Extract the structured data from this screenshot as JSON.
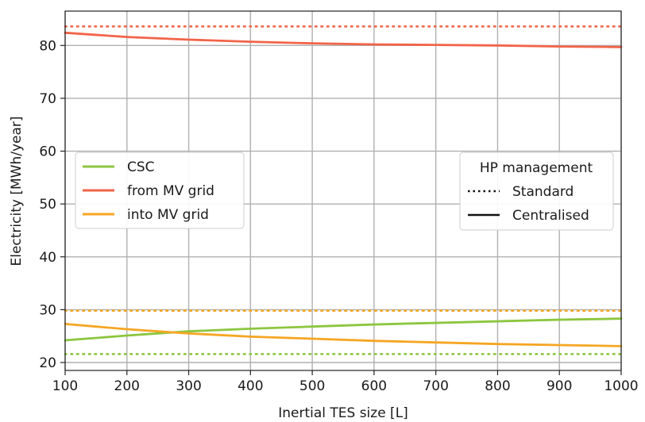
{
  "chart_data": {
    "type": "line",
    "xlabel": "Inertial TES size [L]",
    "ylabel": "Electricity [MWh/year]",
    "xlim": [
      100,
      1000
    ],
    "ylim": [
      18.5,
      86.5
    ],
    "xticks": [
      100,
      200,
      300,
      400,
      500,
      600,
      700,
      800,
      900,
      1000
    ],
    "yticks": [
      20,
      30,
      40,
      50,
      60,
      70,
      80
    ],
    "grid": true,
    "x": [
      100,
      200,
      300,
      400,
      500,
      600,
      700,
      800,
      900,
      1000
    ],
    "colors": {
      "csc": "#8cc63f",
      "from_mv_grid": "#f26449",
      "into_mv_grid": "#f5a623"
    },
    "series": [
      {
        "name": "CSC",
        "key": "csc",
        "style": "Centralised",
        "values": [
          24.2,
          25.1,
          25.9,
          26.4,
          26.8,
          27.2,
          27.5,
          27.8,
          28.1,
          28.3
        ]
      },
      {
        "name": "from MV grid",
        "key": "from_mv_grid",
        "style": "Centralised",
        "values": [
          82.4,
          81.6,
          81.1,
          80.7,
          80.4,
          80.2,
          80.1,
          80.0,
          79.8,
          79.7
        ]
      },
      {
        "name": "into MV grid",
        "key": "into_mv_grid",
        "style": "Centralised",
        "values": [
          27.3,
          26.3,
          25.5,
          24.9,
          24.5,
          24.1,
          23.8,
          23.5,
          23.3,
          23.1
        ]
      },
      {
        "name": "CSC",
        "key": "csc",
        "style": "Standard",
        "values": [
          21.6,
          21.6,
          21.6,
          21.6,
          21.6,
          21.6,
          21.6,
          21.6,
          21.6,
          21.6
        ]
      },
      {
        "name": "from MV grid",
        "key": "from_mv_grid",
        "style": "Standard",
        "values": [
          83.6,
          83.6,
          83.6,
          83.6,
          83.6,
          83.6,
          83.6,
          83.6,
          83.6,
          83.6
        ]
      },
      {
        "name": "into MV grid",
        "key": "into_mv_grid",
        "style": "Standard",
        "values": [
          29.8,
          29.8,
          29.8,
          29.8,
          29.8,
          29.8,
          29.8,
          29.8,
          29.8,
          29.8
        ]
      }
    ],
    "legend_series": {
      "placement": "center-left",
      "entries": [
        {
          "label": "CSC",
          "key": "csc"
        },
        {
          "label": "from MV grid",
          "key": "from_mv_grid"
        },
        {
          "label": "into MV grid",
          "key": "into_mv_grid"
        }
      ]
    },
    "legend_management": {
      "placement": "center-right",
      "title": "HP management",
      "entries": [
        {
          "label": "Standard",
          "style": "Standard"
        },
        {
          "label": "Centralised",
          "style": "Centralised"
        }
      ]
    }
  }
}
